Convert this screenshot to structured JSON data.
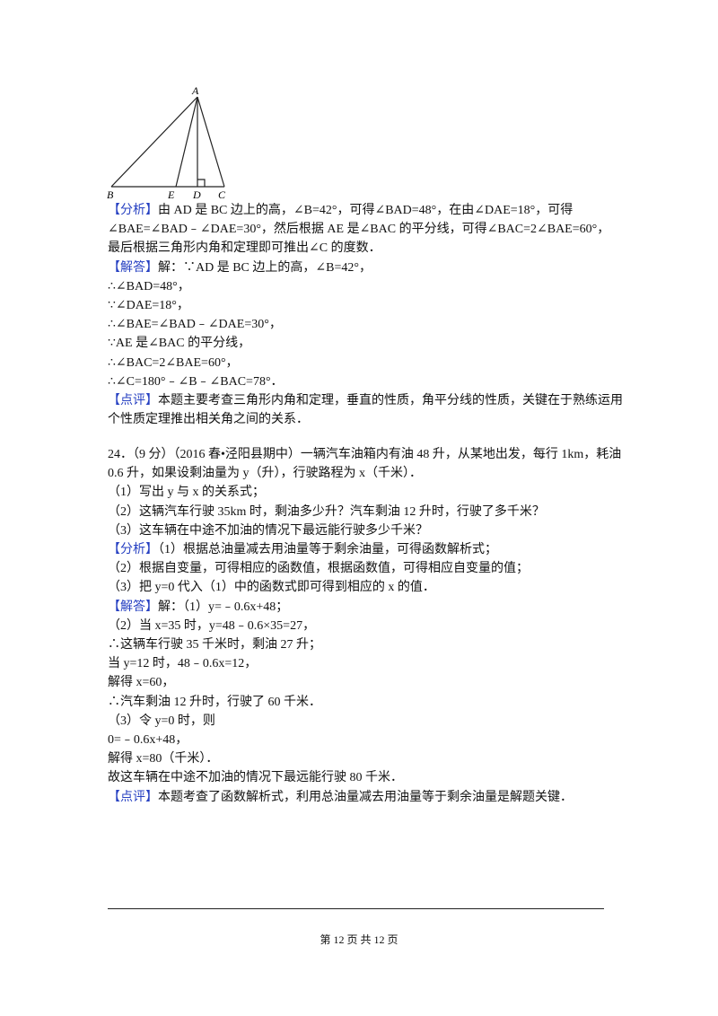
{
  "figure": {
    "labels": [
      "A",
      "B",
      "E",
      "D",
      "C"
    ]
  },
  "blocks": [
    {
      "lines": [
        {
          "tag": "【分析】",
          "text": "由 AD 是 BC 边上的高，∠B=42°，可得∠BAD=48°，在由∠DAE=18°，可得"
        },
        {
          "text": "∠BAE=∠BAD﹣∠DAE=30°，然后根据 AE 是∠BAC 的平分线，可得∠BAC=2∠BAE=60°，"
        },
        {
          "text": "最后根据三角形内角和定理即可推出∠C 的度数．"
        },
        {
          "tag": "【解答】",
          "text": "解：∵AD 是 BC 边上的高，∠B=42°，"
        },
        {
          "text": "∴∠BAD=48°，"
        },
        {
          "text": "∵∠DAE=18°，"
        },
        {
          "text": "∴∠BAE=∠BAD﹣∠DAE=30°，"
        },
        {
          "text": "∵AE 是∠BAC 的平分线，"
        },
        {
          "text": "∴∠BAC=2∠BAE=60°，"
        },
        {
          "text": "∴∠C=180°﹣∠B﹣∠BAC=78°．"
        },
        {
          "tag": "【点评】",
          "text": "本题主要考查三角形内角和定理，垂直的性质，角平分线的性质，关键在于熟练运用"
        },
        {
          "text": "个性质定理推出相关角之间的关系．"
        }
      ]
    },
    {
      "lines": [
        {
          "text": "24．（9 分）（2016 春•泾阳县期中）一辆汽车油箱内有油 48 升，从某地出发，每行 1km，耗油"
        },
        {
          "text": "0.6 升，如果设剩油量为 y（升），行驶路程为 x（千米）．"
        },
        {
          "text": "（1）写出 y 与 x 的关系式；"
        },
        {
          "text": "（2）这辆汽车行驶 35km 时，剩油多少升？汽车剩油 12 升时，行驶了多千米？"
        },
        {
          "text": "（3）这车辆在中途不加油的情况下最远能行驶多少千米？"
        },
        {
          "tag": "【分析】",
          "text": "（1）根据总油量减去用油量等于剩余油量，可得函数解析式；"
        },
        {
          "text": "（2）根据自变量，可得相应的函数值，根据函数值，可得相应自变量的值；"
        },
        {
          "text": "（3）把 y=0 代入（1）中的函数式即可得到相应的 x 的值．"
        },
        {
          "tag": "【解答】",
          "text": "解：（1）y=﹣0.6x+48；"
        },
        {
          "text": "（2）当 x=35 时，y=48﹣0.6×35=27，"
        },
        {
          "text": "∴这辆车行驶 35 千米时，剩油 27 升；"
        },
        {
          "text": "当 y=12 时，48﹣0.6x=12，"
        },
        {
          "text": "解得 x=60，"
        },
        {
          "text": "∴汽车剩油 12 升时，行驶了 60 千米．"
        },
        {
          "text": "（3）令 y=0 时，则"
        },
        {
          "text": "0=﹣0.6x+48，"
        },
        {
          "text": "解得 x=80（千米）．"
        },
        {
          "text": "故这车辆在中途不加油的情况下最远能行驶 80 千米．"
        },
        {
          "tag": "【点评】",
          "text": "本题考查了函数解析式，利用总油量减去用油量等于剩余油量是解题关键．"
        }
      ]
    }
  ],
  "footer": "第 12 页 共 12 页"
}
